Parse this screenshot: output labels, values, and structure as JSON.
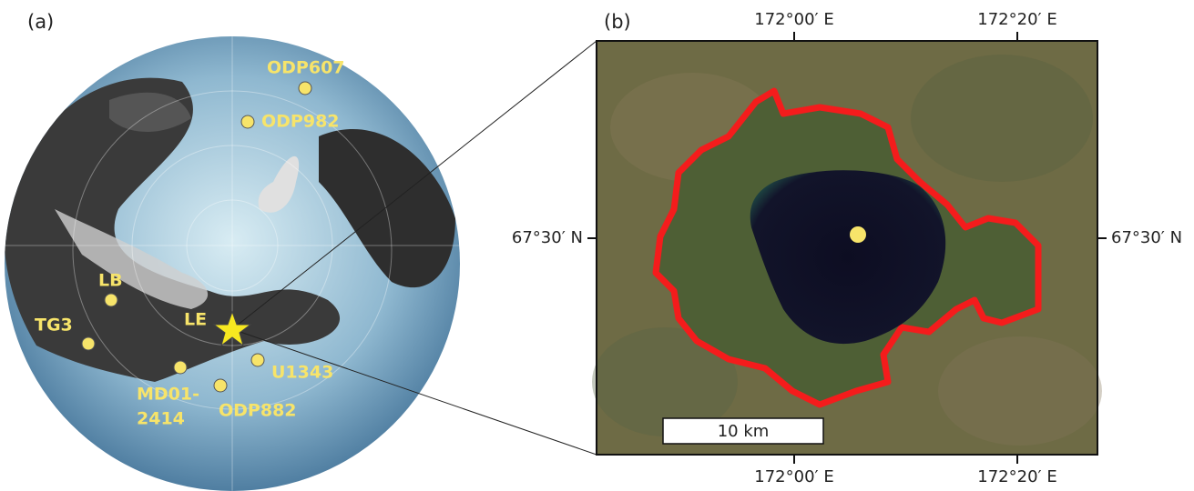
{
  "panel_a": {
    "label": "(a)",
    "sites": [
      {
        "label": "ODP607"
      },
      {
        "label": "ODP982"
      },
      {
        "label": "LB"
      },
      {
        "label": "TG3"
      },
      {
        "label": "U1343"
      },
      {
        "label": "ODP882"
      },
      {
        "label_lines": [
          "MD01-",
          "2414"
        ]
      }
    ],
    "star_label": "LE"
  },
  "panel_b": {
    "label": "(b)",
    "top_ticks": [
      "172°00′ E",
      "172°20′ E"
    ],
    "bottom_ticks": [
      "172°00′ E",
      "172°20′ E"
    ],
    "left_tick": "67°30′ N",
    "right_tick": "67°30′ N",
    "scale_bar": "10 km"
  }
}
